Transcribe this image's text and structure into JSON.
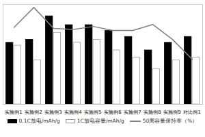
{
  "chart_data": {
    "type": "bar",
    "categories": [
      "实施例1",
      "实施例2",
      "实施例3",
      "实施例4",
      "实施例5",
      "实施例6",
      "实施例7",
      "实施例8",
      "实施例9",
      "对比例1"
    ],
    "series": [
      {
        "name": "0.1C放电/mAh/g",
        "color": "#000000",
        "values": [
          105,
          110,
          150,
          135,
          135,
          125,
          115,
          92,
          105,
          115
        ]
      },
      {
        "name": "1C放电容量/mAh/g",
        "color": "#ffffff",
        "values": [
          100,
          75,
          122,
          105,
          110,
          92,
          80,
          60,
          75,
          80
        ]
      },
      {
        "name": "50周容量保持率（%）",
        "color": "#808080",
        "type": "line",
        "axis": "y2",
        "values": [
          77,
          97,
          76,
          75,
          78,
          74,
          74,
          80,
          65,
          45
        ]
      }
    ],
    "ylim": [
      0,
      170
    ],
    "y2lim": [
      0,
      100
    ],
    "tick_labels": "x",
    "legend": "bottom"
  }
}
